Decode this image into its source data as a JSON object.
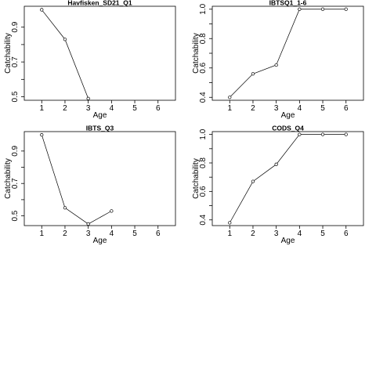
{
  "chart_data": [
    {
      "type": "line",
      "title": "Havfisken_SD21_Q1",
      "xlabel": "Age",
      "ylabel": "Catchability",
      "xlim": [
        0.25,
        6.75
      ],
      "ylim": [
        0.48,
        1.02
      ],
      "xticks": [
        1,
        2,
        3,
        4,
        5,
        6
      ],
      "yticks": [
        0.5,
        0.6,
        0.7,
        0.8,
        0.9
      ],
      "ytick_labels": [
        "0.5",
        "",
        "0.7",
        "",
        "0.9"
      ],
      "x": [
        1,
        2,
        3
      ],
      "y": [
        1.0,
        0.83,
        0.49
      ],
      "markers": true,
      "grid": false
    },
    {
      "type": "line",
      "title": "IBTSQ1_1-6",
      "xlabel": "Age",
      "ylabel": "Catchability",
      "xlim": [
        0.25,
        6.75
      ],
      "ylim": [
        0.38,
        1.02
      ],
      "xticks": [
        1,
        2,
        3,
        4,
        5,
        6
      ],
      "yticks": [
        0.4,
        0.5,
        0.6,
        0.7,
        0.8,
        0.9,
        1.0
      ],
      "ytick_labels": [
        "0.4",
        "",
        "0.6",
        "",
        "0.8",
        "",
        "1.0"
      ],
      "x": [
        1,
        2,
        3,
        4,
        5,
        6
      ],
      "y": [
        0.4,
        0.56,
        0.62,
        1.0,
        1.0,
        1.0
      ],
      "markers": true,
      "grid": false
    },
    {
      "type": "line",
      "title": "IBTS_Q3",
      "xlabel": "Age",
      "ylabel": "Catchability",
      "xlim": [
        0.25,
        6.75
      ],
      "ylim": [
        0.44,
        1.02
      ],
      "xticks": [
        1,
        2,
        3,
        4,
        5,
        6
      ],
      "yticks": [
        0.5,
        0.6,
        0.7,
        0.8,
        0.9
      ],
      "ytick_labels": [
        "0.5",
        "",
        "0.7",
        "",
        "0.9"
      ],
      "x": [
        1,
        2,
        3,
        4
      ],
      "y": [
        1.0,
        0.55,
        0.45,
        0.53
      ],
      "markers": true,
      "grid": false
    },
    {
      "type": "line",
      "title": "CODS_Q4",
      "xlabel": "Age",
      "ylabel": "Catchability",
      "xlim": [
        0.25,
        6.75
      ],
      "ylim": [
        0.36,
        1.02
      ],
      "xticks": [
        1,
        2,
        3,
        4,
        5,
        6
      ],
      "yticks": [
        0.4,
        0.5,
        0.6,
        0.7,
        0.8,
        0.9,
        1.0
      ],
      "ytick_labels": [
        "0.4",
        "",
        "0.6",
        "",
        "0.8",
        "",
        "1.0"
      ],
      "x": [
        1,
        2,
        3,
        4,
        5,
        6
      ],
      "y": [
        0.38,
        0.67,
        0.79,
        1.0,
        1.0,
        1.0
      ],
      "markers": true,
      "grid": false
    }
  ]
}
